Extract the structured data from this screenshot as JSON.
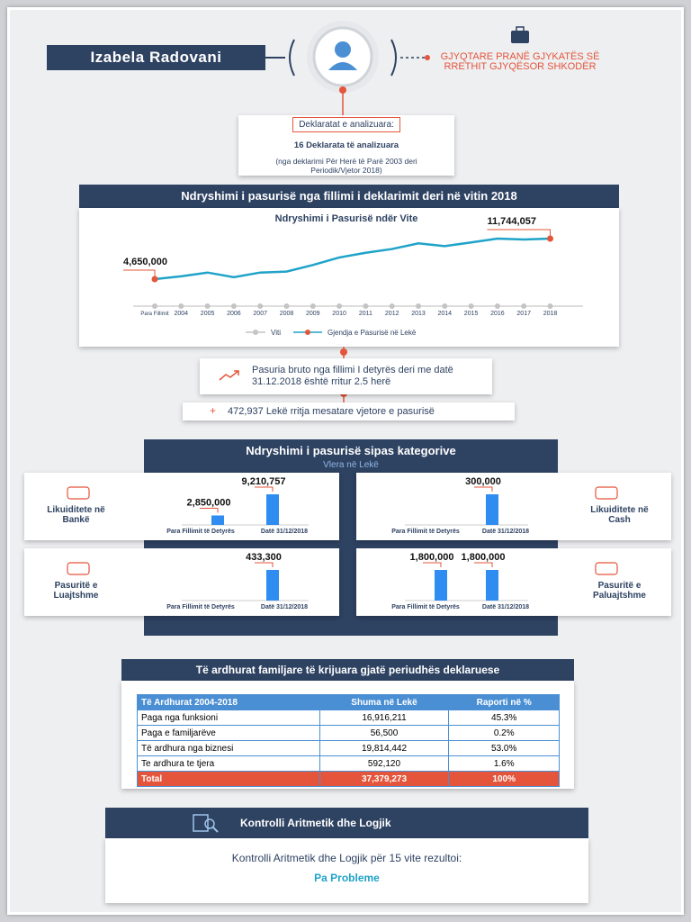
{
  "header": {
    "name": "Izabela Radovani",
    "position": "GJYQTARE PRANË GJYKATËS SË RRETHIT GJYQËSOR SHKODËR"
  },
  "declarations": {
    "label": "Deklaratat e analizuara:",
    "count": "16 Deklarata të analizuara",
    "note": "(nga deklarimi Për Herë të Parë 2003 deri Periodik/Vjetor 2018)"
  },
  "wealth_section": {
    "title": "Ndryshimi i pasurisë nga fillimi i deklarimit deri në vitin 2018"
  },
  "growth": {
    "text": "Pasuria bruto nga fillimi I detyrës deri me datë 31.12.2018 është rritur 2.5 herë",
    "annual": "472,937 Lekë rritja mesatare vjetore e pasurisë"
  },
  "category_section": {
    "title": "Ndryshimi i pasurisë sipas kategorive",
    "subtitle": "Vlera në Lekë"
  },
  "chart_data": [
    {
      "type": "line",
      "title": "Ndryshimi i Pasurisë ndër Vite",
      "x_label": "Viti",
      "categories": [
        "Para Fillimit",
        "2004",
        "2005",
        "2006",
        "2007",
        "2008",
        "2009",
        "2010",
        "2011",
        "2012",
        "2013",
        "2014",
        "2015",
        "2016",
        "2017",
        "2018"
      ],
      "series": [
        {
          "name": "Gjendja e Pasurisë në Lekë",
          "color": "#1fa3c8",
          "values": [
            4650000,
            5150000,
            5800000,
            4980000,
            5800000,
            5970000,
            7120000,
            8440000,
            9260000,
            9920000,
            10910000,
            10420000,
            11080000,
            11740000,
            11580000,
            11744057
          ],
          "value_labels": [
            "4,650,000",
            null,
            null,
            null,
            null,
            null,
            null,
            null,
            null,
            null,
            null,
            null,
            null,
            null,
            null,
            "11,744,057"
          ]
        }
      ]
    },
    {
      "type": "bar",
      "title": "Likuiditete në Bankë",
      "categories": [
        "Para Fillimit të Detyrës",
        "Datë 31/12/2018"
      ],
      "values": [
        2850000,
        9210757
      ],
      "value_labels": [
        "2,850,000",
        "9,210,757"
      ],
      "color": "#2f8cf0"
    },
    {
      "type": "bar",
      "title": "Likuiditete në Cash",
      "categories": [
        "Para Fillimit të Detyrës",
        "Datë 31/12/2018"
      ],
      "values": [
        null,
        300000
      ],
      "value_labels": [
        null,
        "300,000"
      ],
      "color": "#2f8cf0"
    },
    {
      "type": "bar",
      "title": "Pasuritë e Luajtshme",
      "categories": [
        "Para Fillimit të Detyrës",
        "Datë 31/12/2018"
      ],
      "values": [
        null,
        433300
      ],
      "value_labels": [
        null,
        "433,300"
      ],
      "color": "#2f8cf0"
    },
    {
      "type": "bar",
      "title": "Pasuritë e Paluajtshme",
      "categories": [
        "Para Fillimit të Detyrës",
        "Datë 31/12/2018"
      ],
      "values": [
        1800000,
        1800000
      ],
      "value_labels": [
        "1,800,000",
        "1,800,000"
      ],
      "color": "#2f8cf0"
    }
  ],
  "income": {
    "title": "Të ardhurat familjare të krijuara gjatë periudhës deklaruese",
    "header": [
      "Të Ardhurat 2004-2018",
      "Shuma në Lekë",
      "Raporti në %"
    ],
    "rows": [
      [
        "Paga nga funksioni",
        "16,916,211",
        "45.3%"
      ],
      [
        "Paga e familjarëve",
        "56,500",
        "0.2%"
      ],
      [
        "Të ardhura nga biznesi",
        "19,814,442",
        "53.0%"
      ],
      [
        "Te ardhura te tjera",
        "592,120",
        "1.6%"
      ]
    ],
    "total": [
      "Total",
      "37,379,273",
      "100%"
    ]
  },
  "check": {
    "title": "Kontrolli Aritmetik dhe Logjik",
    "text": "Kontrolli Aritmetik dhe Logjik për 15 vite rezultoi:",
    "result": "Pa Probleme"
  }
}
